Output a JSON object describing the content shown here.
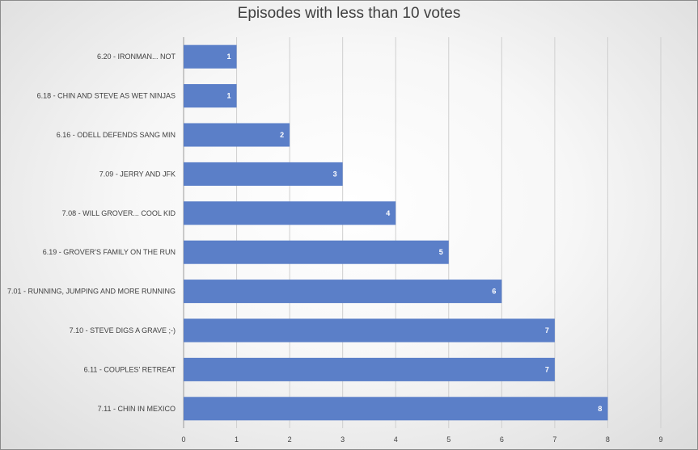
{
  "chart_data": {
    "type": "bar",
    "orientation": "horizontal",
    "title": "Episodes with less than 10 votes",
    "categories": [
      "6.20 - IRONMAN... NOT",
      "6.18 - CHIN AND STEVE AS WET NINJAS",
      "6.16 - ODELL DEFENDS SANG MIN",
      "7.09 - JERRY AND JFK",
      "7.08 - WILL GROVER... COOL KID",
      "6.19 - GROVER'S FAMILY ON THE RUN",
      "7.01 - RUNNING, JUMPING AND MORE RUNNING",
      "7.10 - STEVE DIGS A GRAVE ;-)",
      "6.11 - COUPLES' RETREAT",
      "7.11 - CHIN IN MEXICO"
    ],
    "values": [
      1,
      1,
      2,
      3,
      4,
      5,
      6,
      7,
      7,
      8
    ],
    "xlim": [
      0,
      9
    ],
    "xticks": [
      "0",
      "1",
      "2",
      "3",
      "4",
      "5",
      "6",
      "7",
      "8",
      "9"
    ],
    "xlabel": "",
    "ylabel": "",
    "grid": true,
    "data_labels": true,
    "colors": {
      "bar": "#5b7fc8",
      "label": "#ffffff"
    }
  }
}
